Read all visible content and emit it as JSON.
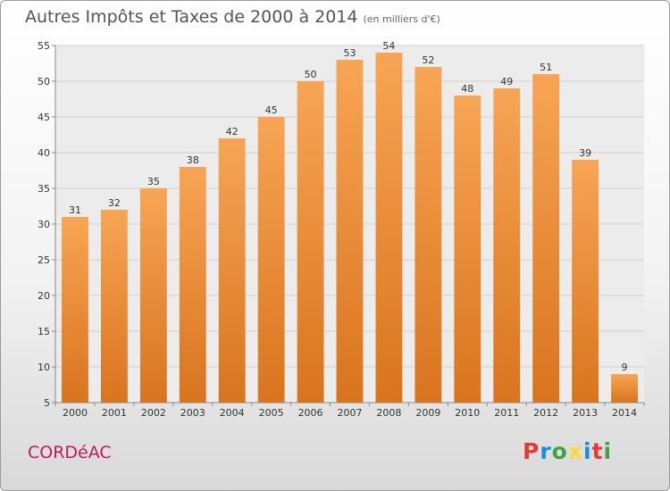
{
  "chart_data": {
    "type": "bar",
    "title": "Autres Impôts et Taxes de 2000 à 2014",
    "subtitle": "(en milliers d'€)",
    "categories": [
      "2000",
      "2001",
      "2002",
      "2003",
      "2004",
      "2005",
      "2006",
      "2007",
      "2008",
      "2009",
      "2010",
      "2011",
      "2012",
      "2013",
      "2014"
    ],
    "values": [
      31,
      32,
      35,
      38,
      42,
      45,
      50,
      53,
      54,
      52,
      48,
      49,
      51,
      39,
      9
    ],
    "ylim": [
      5,
      55
    ],
    "yticks": [
      5,
      10,
      15,
      20,
      25,
      30,
      35,
      40,
      45,
      50,
      55
    ],
    "grid": true,
    "bar_color": "#f0963c"
  },
  "footer": {
    "commune": "CORDéAC",
    "logo": "Proxiti"
  },
  "colors": {
    "commune": "#c2185b",
    "logo_letters": [
      "#e53935",
      "#1e88e5",
      "#43a047",
      "#fdd835",
      "#1e88e5",
      "#e53935",
      "#43a047"
    ]
  }
}
